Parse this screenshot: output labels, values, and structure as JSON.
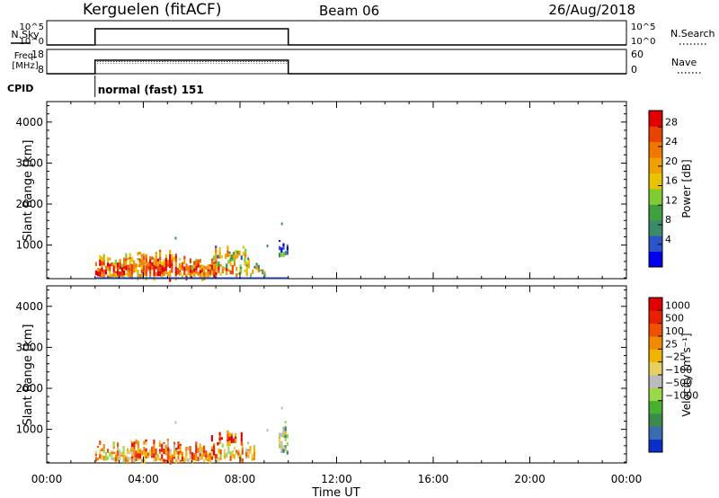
{
  "header": {
    "station": "Kerguelen (fitACF)",
    "beam": "Beam 06",
    "date": "26/Aug/2018"
  },
  "time_axis": {
    "ticks": [
      "00:00",
      "04:00",
      "08:00",
      "12:00",
      "16:00",
      "20:00",
      "00:00"
    ],
    "label": "Time UT",
    "range_hours": [
      0,
      24
    ]
  },
  "strips": {
    "nsky": {
      "label": "N.Sky",
      "left_ticks": [
        "10^5",
        "10^0"
      ],
      "right_ticks": [
        "10^5",
        "10^0"
      ],
      "right_label": "N.Search",
      "on_hours": [
        2.0,
        10.0
      ]
    },
    "freq": {
      "label_line1": "Freq.",
      "label_line2": "[MHz]",
      "left_ticks": [
        "18",
        "8"
      ],
      "right_ticks": [
        "60",
        "0"
      ],
      "right_label": "Nave",
      "on_hours": [
        2.0,
        10.0
      ]
    },
    "cpid": {
      "label": "CPID",
      "text": "normal (fast) 151",
      "start_hour": 2.0
    }
  },
  "chart_data": [
    {
      "type": "heatmap",
      "name": "power",
      "ylabel": "Slant Range [km]",
      "xlabel": "",
      "xlim": [
        0,
        24
      ],
      "ylim": [
        180,
        4500
      ],
      "yticks": [
        1000,
        2000,
        3000,
        4000
      ],
      "colorbar": {
        "label": "Power [dB]",
        "ticks": [
          "4",
          "8",
          "12",
          "16",
          "20",
          "24",
          "28"
        ],
        "colors": [
          "#0000ee",
          "#2a55c8",
          "#3d8a6a",
          "#3fa040",
          "#7fcc33",
          "#e8c400",
          "#f0a000",
          "#f07800",
          "#e84400",
          "#e00000"
        ]
      },
      "blobs": [
        {
          "t0": 2.0,
          "t1": 3.0,
          "r0": 300,
          "r1": 700,
          "level": 0.68
        },
        {
          "t0": 3.0,
          "t1": 4.0,
          "r0": 300,
          "r1": 750,
          "level": 0.62
        },
        {
          "t0": 4.0,
          "t1": 5.5,
          "r0": 300,
          "r1": 800,
          "level": 0.72
        },
        {
          "t0": 5.5,
          "t1": 7.0,
          "r0": 300,
          "r1": 700,
          "level": 0.66
        },
        {
          "t0": 7.0,
          "t1": 8.0,
          "r0": 350,
          "r1": 650,
          "level": 0.55
        },
        {
          "t0": 8.0,
          "t1": 9.0,
          "r0": 380,
          "r1": 620,
          "level": 0.5
        },
        {
          "t0": 6.8,
          "t1": 8.2,
          "r0": 780,
          "r1": 900,
          "level": 0.45
        },
        {
          "t0": 9.6,
          "t1": 9.95,
          "r0": 800,
          "r1": 1150,
          "level": 0.12
        }
      ],
      "ground_line_km": 190
    },
    {
      "type": "heatmap",
      "name": "velocity",
      "ylabel": "Slant Range [km]",
      "xlabel": "Time UT",
      "xlim": [
        0,
        24
      ],
      "ylim": [
        180,
        4500
      ],
      "yticks": [
        1000,
        2000,
        3000,
        4000
      ],
      "colorbar": {
        "label": "Velocity [m s⁻¹]",
        "ticks": [
          "1000",
          "500",
          "100",
          "25",
          "−25",
          "−100",
          "−500",
          "−1000"
        ],
        "colors": [
          "#0a2ec8",
          "#3a6ab0",
          "#3c8a4c",
          "#48b030",
          "#9ad848",
          "#bbbbbb",
          "#e8d060",
          "#f0b400",
          "#f08a00",
          "#f05000",
          "#e82000",
          "#e00000"
        ]
      },
      "blobs": [
        {
          "t0": 2.0,
          "t1": 3.5,
          "r0": 300,
          "r1": 650,
          "level": 0.6
        },
        {
          "t0": 3.5,
          "t1": 5.0,
          "r0": 300,
          "r1": 700,
          "level": 0.72
        },
        {
          "t0": 5.0,
          "t1": 7.0,
          "r0": 300,
          "r1": 650,
          "level": 0.68
        },
        {
          "t0": 7.0,
          "t1": 8.6,
          "r0": 350,
          "r1": 600,
          "level": 0.58
        },
        {
          "t0": 6.8,
          "t1": 8.2,
          "r0": 750,
          "r1": 900,
          "level": 0.88
        },
        {
          "t0": 9.6,
          "t1": 9.95,
          "r0": 500,
          "r1": 1150,
          "level": 0.4
        }
      ]
    }
  ]
}
